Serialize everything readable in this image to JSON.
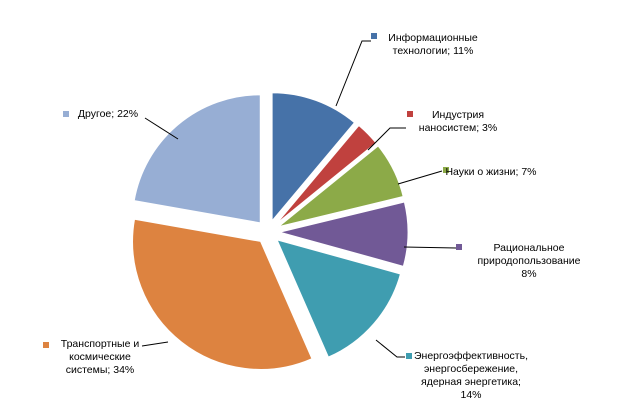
{
  "chart_data": {
    "type": "pie",
    "title": "",
    "slices": [
      {
        "label": "Информационные технологии",
        "value": 11,
        "data_label_lines": [
          "Информационные",
          "технологии; 11%"
        ],
        "color": "#4672A8"
      },
      {
        "label": "Индустрия наносистем",
        "value": 3,
        "data_label_lines": [
          "Индустрия",
          "наносистем; 3%"
        ],
        "color": "#C0413E"
      },
      {
        "label": "Науки о жизни",
        "value": 7,
        "data_label_lines": [
          "Науки о жизни; 7%"
        ],
        "color": "#8CAA48"
      },
      {
        "label": "Рациональное природопользование",
        "value": 8,
        "data_label_lines": [
          "Рациональное",
          "природопользование",
          "8%"
        ],
        "color": "#715996"
      },
      {
        "label": "Энергоэффективность, энергосбережение, ядерная энергетика",
        "value": 14,
        "data_label_lines": [
          "Энергоэффективность,",
          "энергосбережение,",
          "ядерная энергетика;",
          "14%"
        ],
        "color": "#3F9DB0"
      },
      {
        "label": "Транспортные и космические системы",
        "value": 34,
        "data_label_lines": [
          "Транспортные и",
          "космические",
          "системы; 34%"
        ],
        "color": "#DD8340"
      },
      {
        "label": "Другое",
        "value": 22,
        "data_label_lines": [
          "Другое; 22%"
        ],
        "color": "#97AED4"
      }
    ]
  }
}
